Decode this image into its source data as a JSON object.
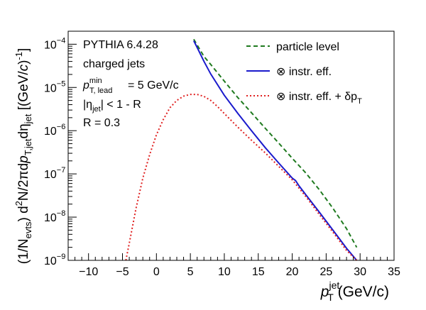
{
  "chart_data": {
    "type": "line",
    "xlabel": {
      "main": "p",
      "sub": "T",
      "sup": "jet",
      "unit": " (GeV/c)"
    },
    "ylabel": "(1/N_evts) d²N/2πdp_T,jet dη_jet [(GeV/c)⁻¹]",
    "xlim": [
      -13,
      35
    ],
    "ylim": [
      1e-09,
      0.0002
    ],
    "yscale": "log",
    "grid": false,
    "x_ticks": [
      -10,
      -5,
      0,
      5,
      10,
      15,
      20,
      25,
      30,
      35
    ],
    "x_tick_labels": [
      "−10",
      "−5",
      "0",
      "5",
      "10",
      "15",
      "20",
      "25",
      "30",
      "35"
    ],
    "y_ticks": [
      -9,
      -8,
      -7,
      -6,
      -5,
      -4
    ],
    "y_tick_labels": [
      {
        "mant": "10",
        "exp": "−9"
      },
      {
        "mant": "10",
        "exp": "−8"
      },
      {
        "mant": "10",
        "exp": "−7"
      },
      {
        "mant": "10",
        "exp": "−6"
      },
      {
        "mant": "10",
        "exp": "−5"
      },
      {
        "mant": "10",
        "exp": "−4"
      }
    ],
    "annotations": {
      "generator": "PYTHIA 6.4.28",
      "jets": "charged jets",
      "lead_main": "p",
      "lead_sup": "min",
      "lead_sub": "T, lead",
      "lead_value": "=  5 GeV/c",
      "eta_prefix": "|η",
      "eta_sub": "jet",
      "eta_rest": "| < 1 - R",
      "radius": "R = 0.3"
    },
    "legend_position": "top-right",
    "series": [
      {
        "name": "particle level",
        "color": "#1f7a1f",
        "style": "dashed",
        "x": [
          5.5,
          7,
          8,
          10,
          12,
          14,
          16,
          18,
          20,
          22,
          24,
          26,
          28,
          29.5
        ],
        "y": [
          0.00013,
          5.2e-05,
          3.4e-05,
          1.4e-05,
          5.8e-06,
          2.6e-06,
          1.15e-06,
          5.2e-07,
          2.3e-07,
          1.05e-07,
          4.3e-08,
          1.6e-08,
          5.4e-09,
          2e-09
        ]
      },
      {
        "name": "⊗ instr. eff.",
        "color": "#1a1acc",
        "style": "solid",
        "x": [
          5.5,
          6,
          7,
          8,
          10,
          12,
          14,
          16,
          18,
          20,
          20.5,
          21,
          22,
          24,
          26,
          28,
          29.5
        ],
        "y": [
          0.00012,
          8.4e-05,
          4e-05,
          2.05e-05,
          6.6e-06,
          2.5e-06,
          1e-06,
          4.1e-07,
          1.8e-07,
          8e-08,
          7e-08,
          5.3e-08,
          3.3e-08,
          1.3e-08,
          5e-09,
          1.9e-09,
          1e-09
        ]
      },
      {
        "name": "⊗ instr. eff. + δp",
        "name_sub": "T",
        "color": "#e02020",
        "style": "dotted",
        "x": [
          -4.5,
          -4,
          -3,
          -2,
          -1,
          0,
          1,
          2,
          3,
          4,
          5,
          6,
          7,
          8,
          9,
          10,
          12,
          14,
          16,
          18,
          20,
          22,
          24,
          26,
          28,
          29.5
        ],
        "y": [
          1e-09,
          2.5e-09,
          1.6e-08,
          8e-08,
          2.8e-07,
          8e-07,
          1.8e-06,
          3.4e-06,
          5e-06,
          6.3e-06,
          6.9e-06,
          6.9e-06,
          6.2e-06,
          5e-06,
          3.6e-06,
          2.5e-06,
          1.2e-06,
          6e-07,
          3.1e-07,
          1.5e-07,
          7.3e-08,
          3e-08,
          1.15e-08,
          4.5e-09,
          1.7e-09,
          1e-09
        ]
      }
    ]
  }
}
